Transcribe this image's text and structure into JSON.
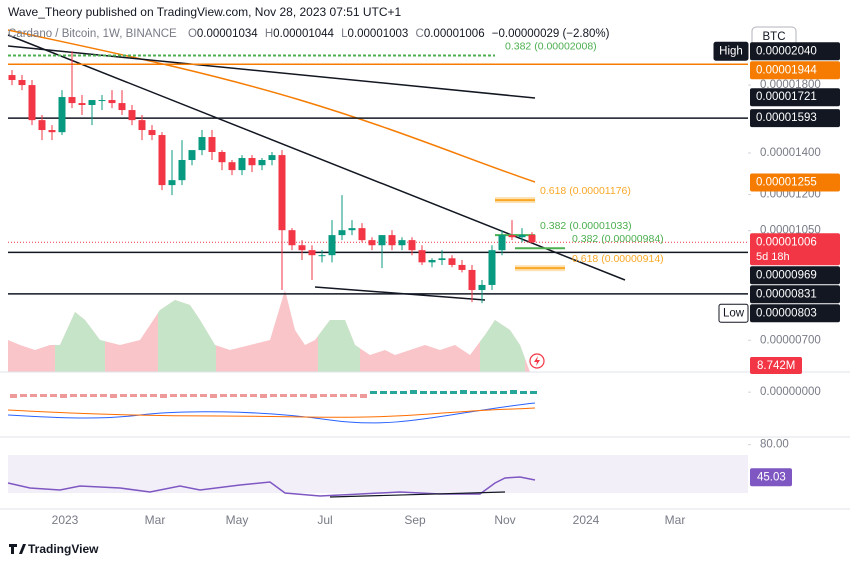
{
  "header": {
    "publisher": "Wave_Theory published on TradingView.com, Nov 28, 2023 07:51 UTC+1",
    "brand": "TradingView"
  },
  "chart_data": {
    "type": "candlestick",
    "symbol": "Cardano / Bitcoin, 1W, BINANCE",
    "legend": [
      {
        "key": "O",
        "value": "0.00001034"
      },
      {
        "key": "H",
        "value": "0.00001044"
      },
      {
        "key": "L",
        "value": "0.00001003"
      },
      {
        "key": "C",
        "value": "0.00001006"
      }
    ],
    "change": "−0.00000029 (−2.80%)",
    "currency": "BTC",
    "log_scale": true,
    "grid": false,
    "up_color": "#089981",
    "down_color": "#f23645",
    "ylim": [
      6.27e-06,
      2.207e-05
    ],
    "yticks": [
      {
        "value": 1.8e-05,
        "label": "0.00001800"
      },
      {
        "value": 1.4e-05,
        "label": "0.00001400"
      },
      {
        "value": 1.2e-05,
        "label": "0.00001200"
      },
      {
        "value": 1.05e-05,
        "label": "0.00001050"
      },
      {
        "value": 7e-06,
        "label": "0.00000700"
      }
    ],
    "open": [
      1.868e-05,
      1.834e-05,
      1.8e-05,
      1.581e-05,
      1.524e-05,
      1.512e-05,
      1.722e-05,
      1.684e-05,
      1.672e-05,
      1.703e-05,
      1.703e-05,
      1.684e-05,
      1.641e-05,
      1.581e-05,
      1.524e-05,
      1.496e-05,
      1.243e-05,
      1.266e-05,
      1.364e-05,
      1.415e-05,
      1.485e-05,
      1.405e-05,
      1.353e-05,
      1.314e-05,
      1.374e-05,
      1.338e-05,
      1.364e-05,
      1.389e-05,
      1.052e-05,
      9.95e-06,
      9.77e-06,
      9.59e-06,
      9.59e-06,
      1.033e-05,
      1.052e-05,
      1.06e-05,
      1.014e-05,
      9.95e-06,
      1.033e-05,
      9.95e-06,
      1.014e-05,
      9.77e-06,
      9.34e-06,
      9.42e-06,
      9.48e-06,
      9.25e-06,
      9.08e-06,
      8.43e-06,
      8.59e-06,
      9.77e-06,
      1.033e-05,
      1.025e-05,
      1.034e-05
    ],
    "high": [
      1.903e-05,
      1.868e-05,
      1.834e-05,
      1.611e-05,
      1.552e-05,
      1.767e-05,
      2.04e-05,
      1.735e-05,
      1.703e-05,
      1.735e-05,
      1.767e-05,
      1.767e-05,
      1.672e-05,
      1.611e-05,
      1.552e-05,
      1.512e-05,
      1.415e-05,
      1.468e-05,
      1.405e-05,
      1.524e-05,
      1.524e-05,
      1.415e-05,
      1.364e-05,
      1.389e-05,
      1.389e-05,
      1.374e-05,
      1.405e-05,
      1.415e-05,
      1.06e-05,
      1.014e-05,
      9.95e-06,
      9.77e-06,
      1.092e-05,
      1.198e-05,
      1.092e-05,
      1.08e-05,
      1.025e-05,
      1.033e-05,
      1.052e-05,
      1.025e-05,
      1.025e-05,
      9.95e-06,
      9.48e-06,
      9.77e-06,
      9.59e-06,
      9.42e-06,
      9.25e-06,
      8.75e-06,
      9.95e-06,
      1.052e-05,
      1.092e-05,
      1.06e-05,
      1.044e-05
    ],
    "low": [
      1.8e-05,
      1.767e-05,
      1.552e-05,
      1.468e-05,
      1.468e-05,
      1.496e-05,
      1.653e-05,
      1.611e-05,
      1.552e-05,
      1.641e-05,
      1.653e-05,
      1.611e-05,
      1.552e-05,
      1.468e-05,
      1.468e-05,
      1.22e-05,
      1.198e-05,
      1.243e-05,
      1.338e-05,
      1.389e-05,
      1.364e-05,
      1.314e-05,
      1.29e-05,
      1.29e-05,
      1.304e-05,
      1.314e-05,
      1.338e-05,
      8.43e-06,
      9.77e-06,
      9.42e-06,
      8.75e-06,
      9.34e-06,
      9.34e-06,
      1.014e-05,
      1.033e-05,
      1.006e-05,
      9.77e-06,
      9.14e-06,
      9.77e-06,
      9.77e-06,
      9.59e-06,
      9.25e-06,
      9.17e-06,
      9.25e-06,
      9.17e-06,
      9e-06,
      8.06e-06,
      8.03e-06,
      8.43e-06,
      9.59e-06,
      1.014e-05,
      1.006e-05,
      1.003e-05
    ],
    "close": [
      1.834e-05,
      1.8e-05,
      1.581e-05,
      1.524e-05,
      1.512e-05,
      1.722e-05,
      1.684e-05,
      1.672e-05,
      1.703e-05,
      1.703e-05,
      1.684e-05,
      1.641e-05,
      1.581e-05,
      1.524e-05,
      1.496e-05,
      1.243e-05,
      1.266e-05,
      1.364e-05,
      1.415e-05,
      1.485e-05,
      1.405e-05,
      1.353e-05,
      1.314e-05,
      1.374e-05,
      1.338e-05,
      1.364e-05,
      1.389e-05,
      1.052e-05,
      9.95e-06,
      9.77e-06,
      9.59e-06,
      9.59e-06,
      1.033e-05,
      1.052e-05,
      1.06e-05,
      1.014e-05,
      9.95e-06,
      1.033e-05,
      9.95e-06,
      1.014e-05,
      9.77e-06,
      9.34e-06,
      9.42e-06,
      9.48e-06,
      9.25e-06,
      9.08e-06,
      8.43e-06,
      8.59e-06,
      9.77e-06,
      1.033e-05,
      1.025e-05,
      1.034e-05,
      1.006e-05
    ],
    "time_labels": [
      "2023",
      "Mar",
      "May",
      "Jul",
      "Sep",
      "Nov",
      "2024",
      "Mar"
    ],
    "price_labels": [
      {
        "value": 2.04e-05,
        "label": "0.00002040",
        "tag": "High",
        "color": "#131722"
      },
      {
        "value": 1.944e-05,
        "label": "0.00001944",
        "color": "#f57c00",
        "line": true
      },
      {
        "value": 1.721e-05,
        "label": "0.00001721",
        "color": "#131722"
      },
      {
        "value": 1.593e-05,
        "label": "0.00001593",
        "color": "#131722",
        "line": true
      },
      {
        "value": 1.255e-05,
        "label": "0.00001255",
        "color": "#f57c00"
      },
      {
        "value": 1.006e-05,
        "label": "0.00001006",
        "color": "#f23645",
        "sub": "5d 18h"
      },
      {
        "value": 9.69e-06,
        "label": "0.00000969",
        "color": "#131722",
        "line": true
      },
      {
        "value": 8.31e-06,
        "label": "0.00000831",
        "color": "#131722",
        "line": true
      },
      {
        "value": 8.03e-06,
        "label": "0.00000803",
        "tag": "Low",
        "color": "#131722"
      }
    ],
    "fib_levels": [
      {
        "value": 2.008e-05,
        "label": "0.382 (0.00002008)",
        "color": "#4caf50"
      },
      {
        "value": 1.176e-05,
        "label": "0.618 (0.00001176)",
        "color": "#f9a825"
      },
      {
        "value": 1.033e-05,
        "label": "0.382 (0.00001033)",
        "color": "#4caf50"
      },
      {
        "value": 9.84e-06,
        "label": "0.382 (0.00000984)",
        "color": "#4caf50"
      },
      {
        "value": 9.14e-06,
        "label": "0.618 (0.00000914)",
        "color": "#f9a825"
      }
    ],
    "volume": {
      "ylim": [
        0,
        120000000
      ],
      "value": 8742000,
      "value_label": "8.742M",
      "color": "#f23645"
    },
    "macd": {
      "ylim": [
        -5e-07,
        2e-07
      ],
      "ticks": [
        {
          "value": 0,
          "label": "0.00000000"
        }
      ]
    },
    "rsi": {
      "ylim": [
        10,
        85
      ],
      "ticks": [
        {
          "value": 80,
          "label": "80.00"
        }
      ],
      "value": 45.03,
      "value_label": "45.03",
      "color": "#7e57c2"
    }
  }
}
